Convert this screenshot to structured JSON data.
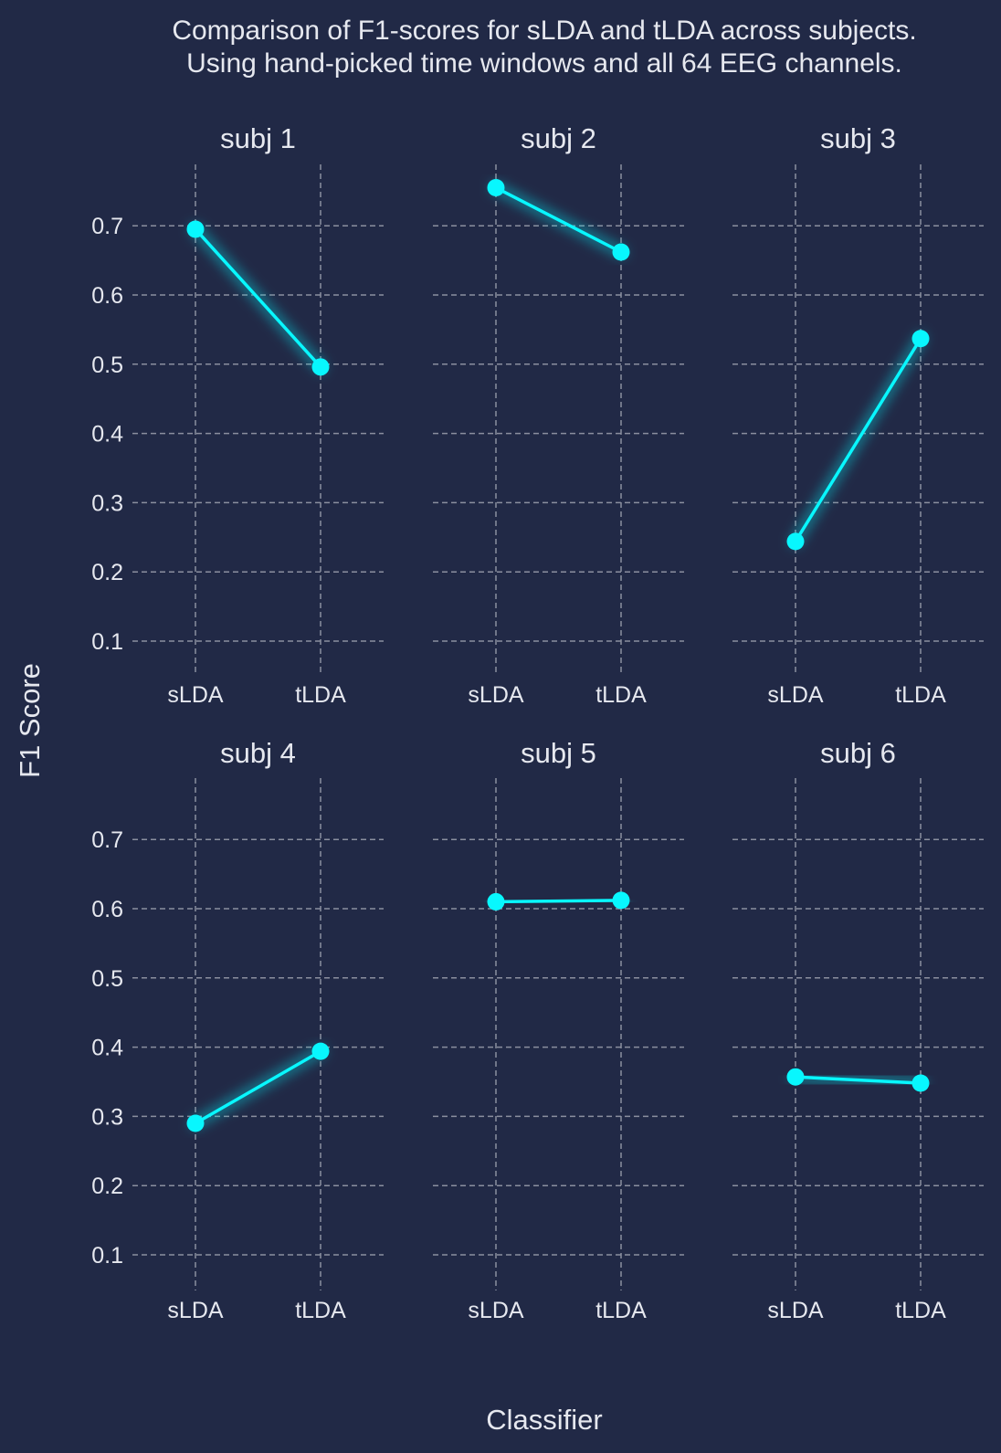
{
  "chart_data": {
    "type": "line",
    "title": "Comparison of F1-scores for sLDA and tLDA across subjects.",
    "subtitle": "Using hand-picked time windows and all 64 EEG channels.",
    "xlabel": "Classifier",
    "ylabel": "F1 Score",
    "categories": [
      "sLDA",
      "tLDA"
    ],
    "yticks": [
      "0.1",
      "0.2",
      "0.3",
      "0.4",
      "0.5",
      "0.6",
      "0.7"
    ],
    "ylim": [
      0.05,
      0.79
    ],
    "grid": true,
    "line_color": "#08f7fe",
    "panels": [
      {
        "title": "subj 1",
        "values": [
          0.695,
          0.496
        ]
      },
      {
        "title": "subj 2",
        "values": [
          0.755,
          0.662
        ]
      },
      {
        "title": "subj 3",
        "values": [
          0.244,
          0.537
        ]
      },
      {
        "title": "subj 4",
        "values": [
          0.29,
          0.394
        ]
      },
      {
        "title": "subj 5",
        "values": [
          0.61,
          0.612
        ]
      },
      {
        "title": "subj 6",
        "values": [
          0.357,
          0.348
        ]
      }
    ]
  }
}
